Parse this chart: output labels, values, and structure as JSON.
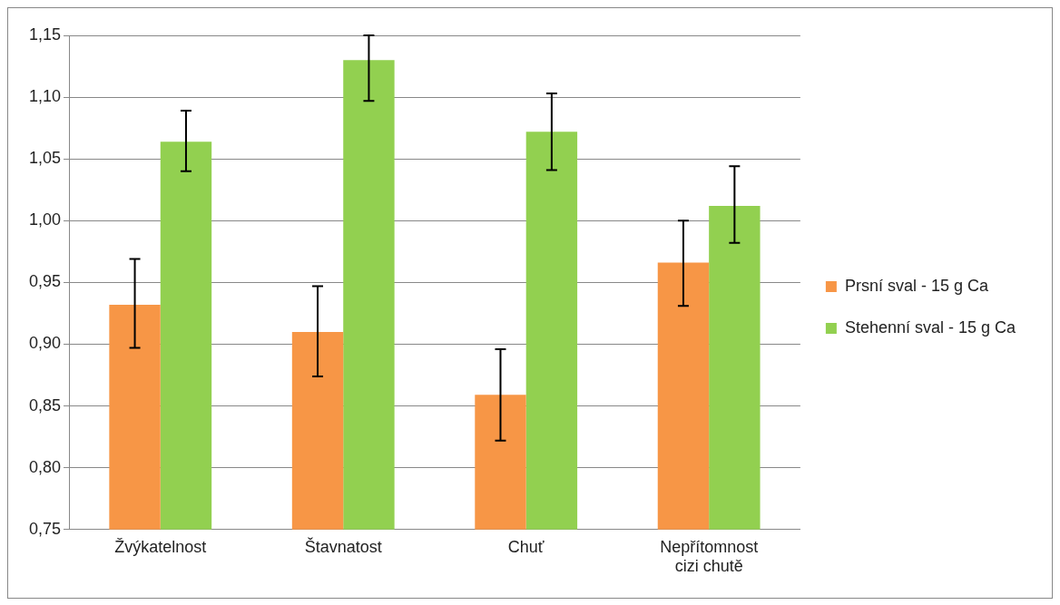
{
  "chart_data": {
    "type": "bar",
    "categories": [
      "Žvýkatelnost",
      "Štavnatost",
      "Chuť",
      "Nepřítomnost cizi chutě"
    ],
    "series": [
      {
        "name": "Prsní sval - 15 g Ca",
        "color": "#f79646",
        "values": [
          0.932,
          0.91,
          0.859,
          0.966
        ],
        "errors": [
          [
            0.897,
            0.969
          ],
          [
            0.874,
            0.947
          ],
          [
            0.822,
            0.896
          ],
          [
            0.931,
            1.0
          ]
        ]
      },
      {
        "name": "Stehenní sval - 15 g Ca",
        "color": "#92d050",
        "values": [
          1.064,
          1.13,
          1.072,
          1.012
        ],
        "errors": [
          [
            1.04,
            1.089
          ],
          [
            1.097,
            1.15
          ],
          [
            1.041,
            1.103
          ],
          [
            0.982,
            1.044
          ]
        ]
      }
    ],
    "ylim": [
      0.75,
      1.15
    ],
    "yticks": [
      {
        "value": 0.75,
        "label": "0,75"
      },
      {
        "value": 0.8,
        "label": "0,80"
      },
      {
        "value": 0.85,
        "label": "0,85"
      },
      {
        "value": 0.9,
        "label": "0,90"
      },
      {
        "value": 0.95,
        "label": "0,95"
      },
      {
        "value": 1.0,
        "label": "1,00"
      },
      {
        "value": 1.05,
        "label": "1,05"
      },
      {
        "value": 1.1,
        "label": "1,10"
      },
      {
        "value": 1.15,
        "label": "1,15"
      }
    ],
    "grid": "y",
    "legend": "right"
  }
}
